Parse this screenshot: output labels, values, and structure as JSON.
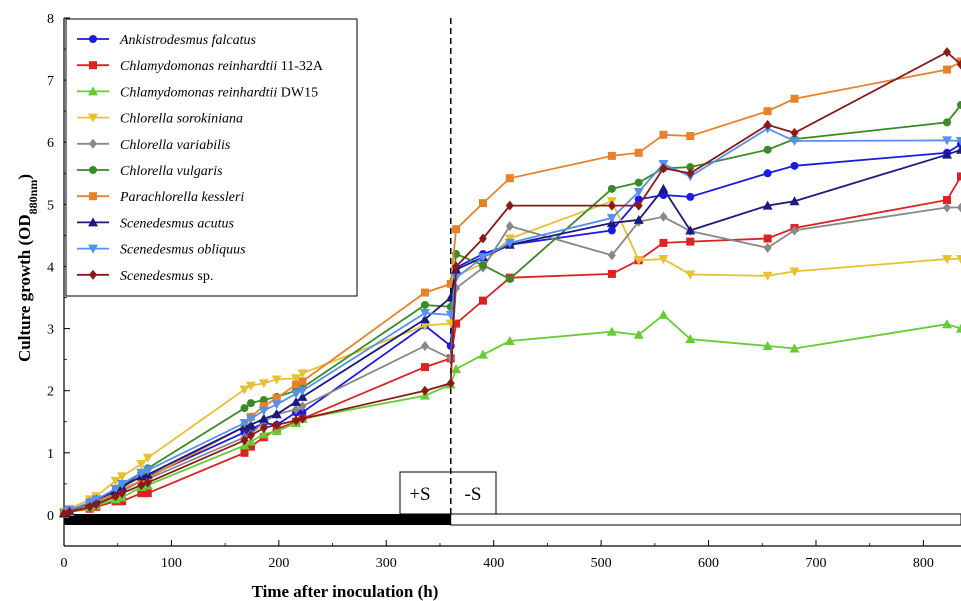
{
  "chart_data": {
    "type": "line",
    "xlabel": "Time after inoculation (h)",
    "ylabel": "Culture growth (OD",
    "ylabel_sub": "880nm",
    "ylabel_close": ")",
    "xlim": [
      0,
      835
    ],
    "ylim": [
      -0.5,
      8
    ],
    "xticks": [
      0,
      100,
      200,
      300,
      400,
      500,
      600,
      700,
      800
    ],
    "yticks": [
      0,
      1,
      2,
      3,
      4,
      5,
      6,
      7,
      8
    ],
    "grid": false,
    "legend_position": "top-left",
    "divider_x": 360,
    "phase_labels": [
      "+S",
      "-S"
    ],
    "series": [
      {
        "name_italic": "Ankistrodesmus falcatus",
        "name_rest": "",
        "color": "#1a1ae6",
        "marker": "circle",
        "x": [
          0,
          5,
          24,
          30,
          48,
          54,
          72,
          78,
          168,
          174,
          186,
          198,
          216,
          222,
          336,
          360,
          365,
          390,
          415,
          510,
          535,
          558,
          583,
          655,
          680,
          822,
          835
        ],
        "y": [
          0.03,
          0.08,
          0.18,
          0.23,
          0.38,
          0.45,
          0.68,
          0.62,
          1.33,
          1.38,
          1.48,
          1.45,
          1.65,
          1.65,
          3.05,
          2.72,
          3.98,
          4.2,
          4.35,
          4.58,
          5.08,
          5.15,
          5.12,
          5.5,
          5.62,
          5.83,
          5.97
        ]
      },
      {
        "name_italic": "Chlamydomonas reinhardtii",
        "name_rest": " 11-32A",
        "color": "#dd2222",
        "marker": "square",
        "x": [
          0,
          5,
          24,
          30,
          48,
          54,
          72,
          78,
          168,
          174,
          186,
          198,
          216,
          222,
          336,
          360,
          365,
          390,
          415,
          510,
          535,
          558,
          583,
          655,
          680,
          822,
          835
        ],
        "y": [
          0.02,
          0.05,
          0.1,
          0.13,
          0.22,
          0.22,
          0.35,
          0.35,
          1.0,
          1.1,
          1.25,
          1.38,
          1.5,
          1.55,
          2.38,
          2.52,
          3.08,
          3.45,
          3.82,
          3.88,
          4.1,
          4.38,
          4.4,
          4.45,
          4.62,
          5.07,
          5.45
        ]
      },
      {
        "name_italic": "Chlamydomonas reinhardtii",
        "name_rest": " DW15",
        "color": "#66cc33",
        "marker": "triangle-up",
        "x": [
          0,
          5,
          24,
          30,
          48,
          54,
          72,
          78,
          168,
          174,
          186,
          198,
          216,
          222,
          336,
          360,
          365,
          390,
          415,
          510,
          535,
          558,
          583,
          655,
          680,
          822,
          835
        ],
        "y": [
          0.02,
          0.05,
          0.12,
          0.15,
          0.25,
          0.28,
          0.45,
          0.48,
          1.12,
          1.18,
          1.3,
          1.35,
          1.48,
          1.55,
          1.92,
          2.1,
          2.35,
          2.58,
          2.8,
          2.95,
          2.9,
          3.22,
          2.83,
          2.72,
          2.68,
          3.07,
          3.0
        ]
      },
      {
        "name_italic": "Chlorella sorokiniana",
        "name_rest": "",
        "color": "#e8c030",
        "marker": "triangle-down",
        "x": [
          0,
          5,
          24,
          30,
          48,
          54,
          72,
          78,
          168,
          174,
          186,
          198,
          216,
          222,
          336,
          360,
          365,
          390,
          415,
          510,
          535,
          558,
          583,
          655,
          680,
          822,
          835
        ],
        "y": [
          0.05,
          0.1,
          0.25,
          0.3,
          0.55,
          0.62,
          0.82,
          0.92,
          2.02,
          2.08,
          2.12,
          2.18,
          2.2,
          2.28,
          3.05,
          3.08,
          3.85,
          4.05,
          4.45,
          5.05,
          4.1,
          4.12,
          3.87,
          3.85,
          3.92,
          4.12,
          4.12
        ]
      },
      {
        "name_italic": "Chlorella variabilis",
        "name_rest": "",
        "color": "#888888",
        "marker": "diamond",
        "x": [
          0,
          5,
          24,
          30,
          48,
          54,
          72,
          78,
          168,
          174,
          186,
          198,
          216,
          222,
          336,
          360,
          365,
          390,
          415,
          510,
          535,
          558,
          583,
          655,
          680,
          822,
          835
        ],
        "y": [
          0.03,
          0.07,
          0.15,
          0.2,
          0.33,
          0.38,
          0.55,
          0.58,
          1.25,
          1.3,
          1.5,
          1.62,
          1.7,
          1.75,
          2.72,
          2.52,
          3.65,
          3.98,
          4.65,
          4.18,
          4.72,
          4.8,
          4.57,
          4.3,
          4.58,
          4.95,
          4.95
        ]
      },
      {
        "name_italic": "Chlorella vulgaris",
        "name_rest": "",
        "color": "#3a8a25",
        "marker": "circle",
        "x": [
          0,
          5,
          24,
          30,
          48,
          54,
          72,
          78,
          168,
          174,
          186,
          198,
          216,
          222,
          336,
          360,
          365,
          390,
          415,
          510,
          535,
          558,
          583,
          655,
          680,
          822,
          835
        ],
        "y": [
          0.03,
          0.07,
          0.2,
          0.25,
          0.4,
          0.48,
          0.68,
          0.75,
          1.72,
          1.8,
          1.85,
          1.9,
          2.0,
          2.05,
          3.38,
          3.35,
          4.2,
          4.02,
          3.8,
          5.25,
          5.35,
          5.58,
          5.6,
          5.88,
          6.05,
          6.32,
          6.6
        ]
      },
      {
        "name_italic": "Parachlorella kessleri",
        "name_rest": "",
        "color": "#e8822a",
        "marker": "square",
        "x": [
          0,
          5,
          24,
          30,
          48,
          54,
          72,
          78,
          168,
          174,
          186,
          198,
          216,
          222,
          336,
          360,
          365,
          390,
          415,
          510,
          535,
          558,
          583,
          655,
          680,
          822,
          835
        ],
        "y": [
          0.03,
          0.07,
          0.15,
          0.22,
          0.35,
          0.42,
          0.55,
          0.6,
          1.42,
          1.58,
          1.75,
          1.88,
          2.1,
          2.15,
          3.58,
          3.72,
          4.6,
          5.02,
          5.42,
          5.78,
          5.83,
          6.12,
          6.1,
          6.5,
          6.7,
          7.17,
          7.3
        ]
      },
      {
        "name_italic": "Scenedesmus acutus",
        "name_rest": "",
        "color": "#1a1a80",
        "marker": "triangle-up",
        "x": [
          0,
          5,
          24,
          30,
          48,
          54,
          72,
          78,
          168,
          174,
          186,
          198,
          216,
          222,
          336,
          360,
          365,
          390,
          415,
          510,
          535,
          558,
          583,
          655,
          680,
          822,
          835
        ],
        "y": [
          0.03,
          0.07,
          0.2,
          0.25,
          0.38,
          0.45,
          0.62,
          0.65,
          1.42,
          1.45,
          1.55,
          1.62,
          1.82,
          1.9,
          3.15,
          3.5,
          3.95,
          4.15,
          4.35,
          4.7,
          4.75,
          5.25,
          4.58,
          4.98,
          5.05,
          5.8,
          5.88
        ]
      },
      {
        "name_italic": "Scenedesmus obliquus",
        "name_rest": "",
        "color": "#5590ee",
        "marker": "triangle-down",
        "x": [
          0,
          5,
          24,
          30,
          48,
          54,
          72,
          78,
          168,
          174,
          186,
          198,
          216,
          222,
          336,
          360,
          365,
          390,
          415,
          510,
          535,
          558,
          583,
          655,
          680,
          822,
          835
        ],
        "y": [
          0.03,
          0.08,
          0.2,
          0.25,
          0.42,
          0.5,
          0.68,
          0.72,
          1.48,
          1.55,
          1.68,
          1.78,
          1.95,
          2.0,
          3.25,
          3.22,
          3.82,
          4.15,
          4.38,
          4.78,
          5.2,
          5.65,
          5.45,
          6.22,
          6.02,
          6.03,
          6.02
        ]
      },
      {
        "name_italic": "Scenedesmus",
        "name_rest": " sp.",
        "color": "#8a1a1a",
        "marker": "diamond",
        "x": [
          0,
          5,
          24,
          30,
          48,
          54,
          72,
          78,
          168,
          174,
          186,
          198,
          216,
          222,
          336,
          360,
          365,
          390,
          415,
          510,
          535,
          558,
          583,
          655,
          680,
          822,
          835
        ],
        "y": [
          0.02,
          0.05,
          0.13,
          0.17,
          0.3,
          0.35,
          0.48,
          0.52,
          1.2,
          1.28,
          1.4,
          1.45,
          1.52,
          1.55,
          2.0,
          2.12,
          4.0,
          4.45,
          4.98,
          4.98,
          4.98,
          5.58,
          5.5,
          6.28,
          6.15,
          7.45,
          7.25
        ]
      }
    ]
  }
}
